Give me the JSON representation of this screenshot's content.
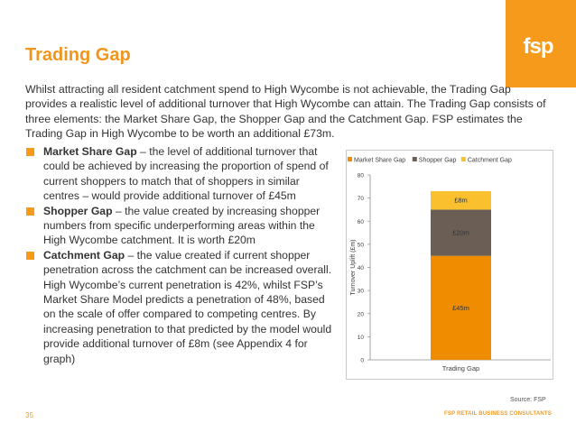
{
  "brand": {
    "logo_text": "fsp",
    "accent_color": "#f59a1b"
  },
  "slide": {
    "title": "Trading Gap",
    "intro": "Whilst attracting all resident catchment spend to High Wycombe is not achievable, the Trading Gap provides a realistic level of additional turnover that High Wycombe can attain.  The Trading Gap consists of three elements: the Market Share Gap, the Shopper Gap and the Catchment Gap. FSP estimates the Trading Gap in High Wycombe to be worth an additional £73m."
  },
  "bullets": [
    {
      "term": "Market Share Gap",
      "text": " – the  level of additional turnover that could be achieved by increasing the proportion of spend of current shoppers to match that of shoppers in similar centres – would provide additional turnover of £45m"
    },
    {
      "term": "Shopper Gap",
      "text": " – the value created by increasing shopper numbers from specific underperforming areas within the High Wycombe catchment.  It is worth £20m"
    },
    {
      "term": "Catchment Gap",
      "text": " – the value created if current shopper penetration across the catchment can be increased overall.  High Wycombe’s current penetration is 42%, whilst FSP’s Market Share Model predicts a penetration of 48%, based on the scale of  offer compared to competing centres.  By increasing penetration to that predicted by the model would provide additional turnover of £8m (see Appendix 4 for graph)"
    }
  ],
  "chart_data": {
    "type": "bar",
    "stacked": true,
    "categories": [
      "Trading Gap"
    ],
    "series": [
      {
        "name": "Market Share Gap",
        "values": [
          45
        ],
        "label": "£45m",
        "color": "#f08c00"
      },
      {
        "name": "Shopper Gap",
        "values": [
          20
        ],
        "label": "£20m",
        "color": "#6b5e55"
      },
      {
        "name": "Catchment Gap",
        "values": [
          8
        ],
        "label": "£8m",
        "color": "#fbc02d"
      }
    ],
    "ylabel": "Turnover Uplift (£m)",
    "xlabel": "",
    "ylim": [
      0,
      80
    ],
    "yticks": [
      0,
      10,
      20,
      30,
      40,
      50,
      60,
      70,
      80
    ],
    "legend_position": "top",
    "grid": false
  },
  "footer": {
    "source": "Source: FSP",
    "page_number": "35",
    "brand_line": "FSP RETAIL BUSINESS CONSULTANTS"
  }
}
